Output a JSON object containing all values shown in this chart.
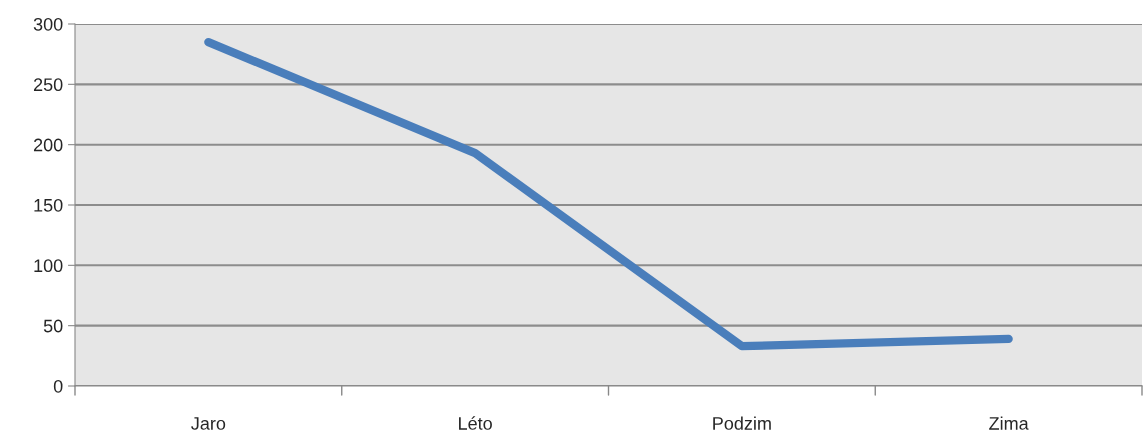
{
  "chart_data": {
    "type": "line",
    "categories": [
      "Jaro",
      "Léto",
      "Podzim",
      "Zima"
    ],
    "series": [
      {
        "color": "#4a7ebb",
        "values": [
          285,
          193,
          33,
          39
        ]
      }
    ],
    "ylim": [
      0,
      300
    ],
    "yticks": [
      0,
      50,
      100,
      150,
      200,
      250,
      300
    ],
    "grid": "y",
    "legend": false,
    "marker": "none",
    "line_style": "solid"
  }
}
